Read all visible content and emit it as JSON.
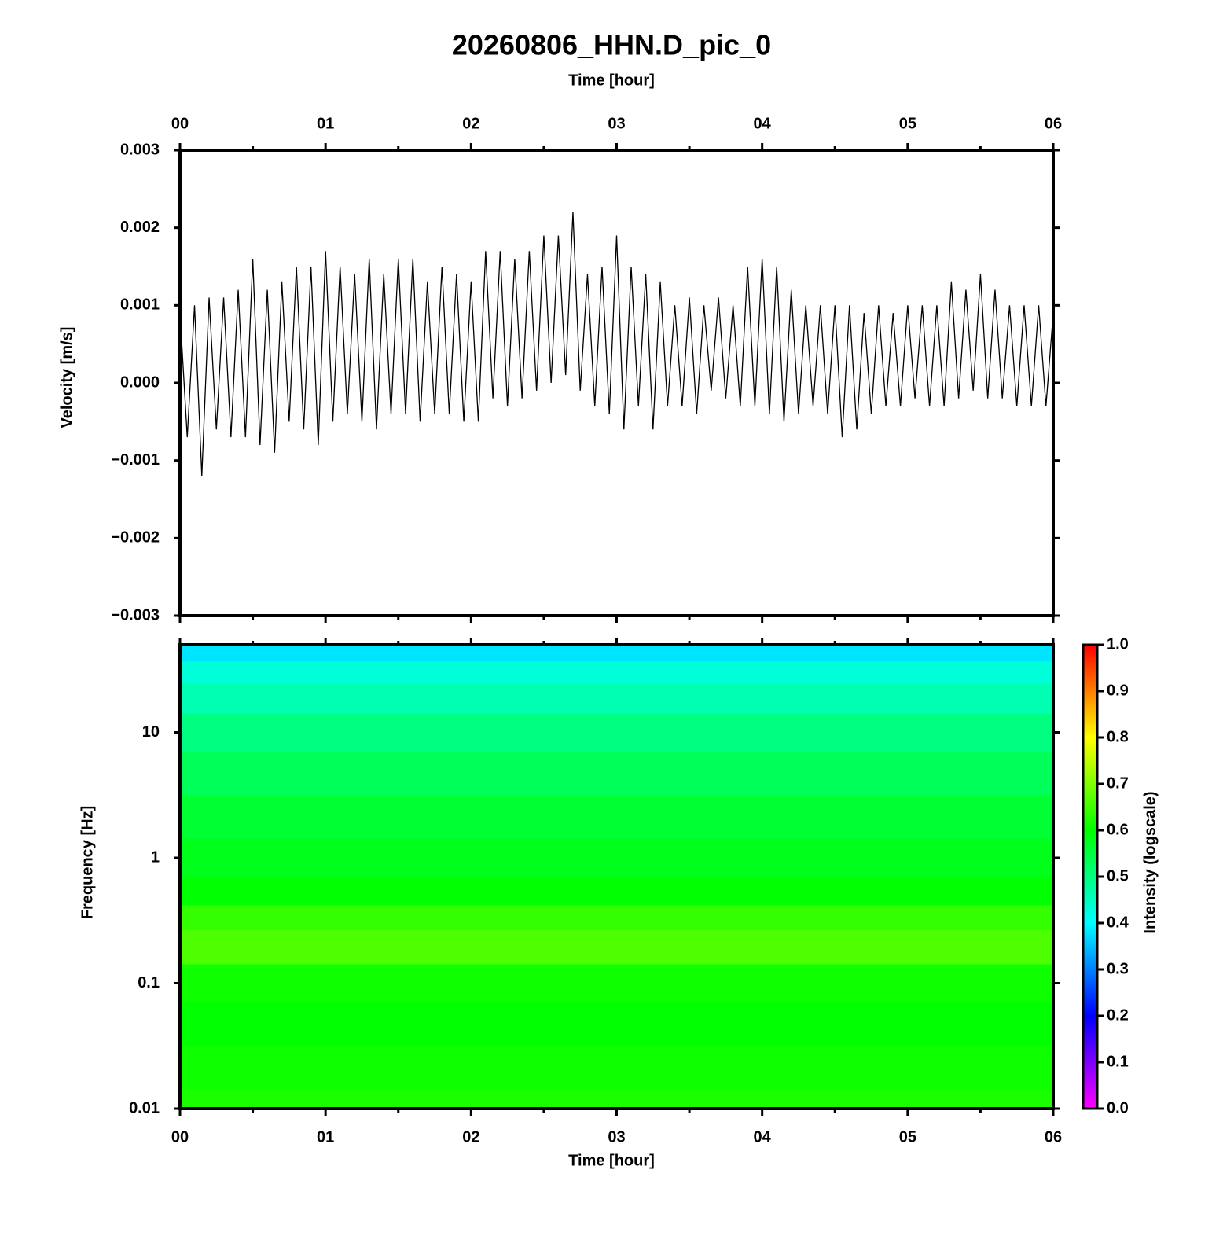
{
  "chart_data": [
    {
      "type": "line",
      "title": "20260806_HHN.D_pic_0",
      "xlabel": "Time [hour]",
      "ylabel": "Velocity [m/s]",
      "x": [
        0,
        0.05,
        0.1,
        0.15,
        0.2,
        0.25,
        0.3,
        0.35,
        0.4,
        0.45,
        0.5,
        0.55,
        0.6,
        0.65,
        0.7,
        0.75,
        0.8,
        0.85,
        0.9,
        0.95,
        1,
        1.05,
        1.1,
        1.15,
        1.2,
        1.25,
        1.3,
        1.35,
        1.4,
        1.45,
        1.5,
        1.55,
        1.6,
        1.65,
        1.7,
        1.75,
        1.8,
        1.85,
        1.9,
        1.95,
        2,
        2.05,
        2.1,
        2.15,
        2.2,
        2.25,
        2.3,
        2.35,
        2.4,
        2.45,
        2.5,
        2.55,
        2.6,
        2.65,
        2.7,
        2.75,
        2.8,
        2.85,
        2.9,
        2.95,
        3,
        3.05,
        3.1,
        3.15,
        3.2,
        3.25,
        3.3,
        3.35,
        3.4,
        3.45,
        3.5,
        3.55,
        3.6,
        3.65,
        3.7,
        3.75,
        3.8,
        3.85,
        3.9,
        3.95,
        4,
        4.05,
        4.1,
        4.15,
        4.2,
        4.25,
        4.3,
        4.35,
        4.4,
        4.45,
        4.5,
        4.55,
        4.6,
        4.65,
        4.7,
        4.75,
        4.8,
        4.85,
        4.9,
        4.95,
        5,
        5.05,
        5.1,
        5.15,
        5.2,
        5.25,
        5.3,
        5.35,
        5.4,
        5.45,
        5.5,
        5.55,
        5.6,
        5.65,
        5.7,
        5.75,
        5.8,
        5.85,
        5.9,
        5.95,
        6
      ],
      "series": [
        {
          "color": "#000000",
          "values": [
            0.0009,
            -0.0007,
            0.001,
            -0.0012,
            0.0011,
            -0.0006,
            0.0011,
            -0.0007,
            0.0012,
            -0.0007,
            0.0016,
            -0.0008,
            0.0012,
            -0.0009,
            0.0013,
            -0.0005,
            0.0015,
            -0.0006,
            0.0015,
            -0.0008,
            0.0017,
            -0.0005,
            0.0015,
            -0.0004,
            0.0014,
            -0.0005,
            0.0016,
            -0.0006,
            0.0014,
            -0.0004,
            0.0016,
            -0.0004,
            0.0016,
            -0.0005,
            0.0013,
            -0.0004,
            0.0015,
            -0.0004,
            0.0014,
            -0.0005,
            0.0013,
            -0.0005,
            0.0017,
            -0.0002,
            0.0017,
            -0.0003,
            0.0016,
            -0.0002,
            0.0017,
            -0.0001,
            0.0019,
            0,
            0.0019,
            0.0001,
            0.0022,
            -0.0001,
            0.0014,
            -0.0003,
            0.0015,
            -0.0004,
            0.0019,
            -0.0006,
            0.0015,
            -0.0003,
            0.0014,
            -0.0006,
            0.0013,
            -0.0003,
            0.001,
            -0.0003,
            0.0011,
            -0.0004,
            0.001,
            -0.0001,
            0.0011,
            -0.0002,
            0.001,
            -0.0003,
            0.0015,
            -0.0003,
            0.0016,
            -0.0004,
            0.0015,
            -0.0005,
            0.0012,
            -0.0004,
            0.001,
            -0.0003,
            0.001,
            -0.0004,
            0.001,
            -0.0007,
            0.001,
            -0.0006,
            0.0009,
            -0.0004,
            0.001,
            -0.0003,
            0.0009,
            -0.0003,
            0.001,
            -0.0002,
            0.001,
            -0.0003,
            0.001,
            -0.0003,
            0.0013,
            -0.0002,
            0.0012,
            -0.0001,
            0.0014,
            -0.0002,
            0.0012,
            -0.0002,
            0.001,
            -0.0003,
            0.001,
            -0.0003,
            0.001,
            -0.0003,
            0.0009
          ]
        }
      ],
      "xlim": [
        0,
        6
      ],
      "xticks": [
        {
          "value": 0,
          "label": "00"
        },
        {
          "value": 1,
          "label": "01"
        },
        {
          "value": 2,
          "label": "02"
        },
        {
          "value": 3,
          "label": "03"
        },
        {
          "value": 4,
          "label": "04"
        },
        {
          "value": 5,
          "label": "05"
        },
        {
          "value": 6,
          "label": "06"
        }
      ],
      "xminorticks": [
        0.5,
        1.5,
        2.5,
        3.5,
        4.5,
        5.5
      ],
      "ylim": [
        -0.003,
        0.003
      ],
      "yticks": [
        {
          "value": -0.003,
          "label": "−0.003"
        },
        {
          "value": -0.002,
          "label": "−0.002"
        },
        {
          "value": -0.001,
          "label": "−0.001"
        },
        {
          "value": 0,
          "label": "0.000"
        },
        0.001,
        0.002,
        0.003
      ]
    },
    {
      "type": "heatmap",
      "xlabel": "Time [hour]",
      "ylabel": "Frequency [Hz]",
      "y": [
        45,
        30,
        20,
        10,
        5,
        2,
        1,
        0.5,
        0.35,
        0.2,
        0.1,
        0.05,
        0.02,
        0.01
      ],
      "values": [
        0.38,
        0.43,
        0.46,
        0.5,
        0.53,
        0.56,
        0.58,
        0.6,
        0.64,
        0.66,
        0.61,
        0.6,
        0.61,
        0.62
      ],
      "xlim": [
        0,
        6
      ],
      "xticks": [
        {
          "value": 0,
          "label": "00"
        },
        {
          "value": 1,
          "label": "01"
        },
        {
          "value": 2,
          "label": "02"
        },
        {
          "value": 3,
          "label": "03"
        },
        {
          "value": 4,
          "label": "04"
        },
        {
          "value": 5,
          "label": "05"
        },
        {
          "value": 6,
          "label": "06"
        }
      ],
      "xminorticks": [
        0.5,
        1.5,
        2.5,
        3.5,
        4.5,
        5.5
      ],
      "ylim": [
        0.01,
        50
      ],
      "yticks": [
        10,
        1,
        0.1,
        0.01
      ],
      "log_y": true,
      "colorbar_label": "Intensity (logscale)",
      "colormap": [
        "#ff00ff",
        "#0000ff",
        "#00ffff",
        "#00ff00",
        "#ffff00",
        "#ff0000"
      ],
      "zlim": [
        0,
        1
      ],
      "zticks": [
        {
          "value": 0,
          "label": "0.0"
        },
        0.1,
        0.2,
        0.3,
        0.4,
        0.5,
        0.6,
        0.7,
        0.8,
        0.9,
        {
          "value": 1,
          "label": "1.0"
        }
      ]
    }
  ]
}
